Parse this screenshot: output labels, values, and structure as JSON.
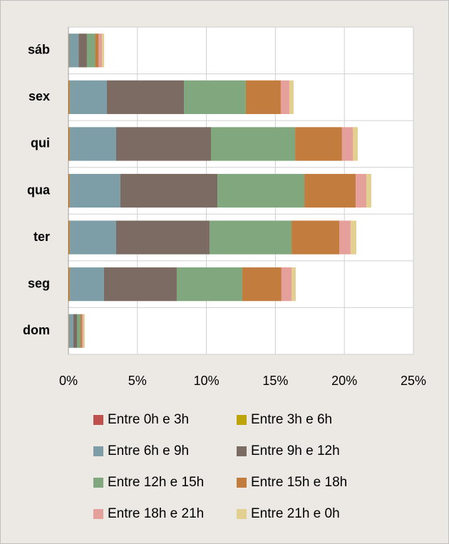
{
  "chart_data": {
    "type": "stacked_bar_horizontal",
    "categories": [
      "sáb",
      "sex",
      "qui",
      "qua",
      "ter",
      "seg",
      "dom"
    ],
    "series": [
      {
        "name": "Entre 0h e 3h",
        "color": "#c0504d",
        "values": [
          0.02,
          0.05,
          0.05,
          0.05,
          0.05,
          0.05,
          0.02
        ]
      },
      {
        "name": "Entre 3h e 6h",
        "color": "#bca40a",
        "values": [
          0.02,
          0.05,
          0.05,
          0.05,
          0.05,
          0.05,
          0.02
        ]
      },
      {
        "name": "Entre 6h e 9h",
        "color": "#7d9ea6",
        "values": [
          0.7,
          2.69,
          3.36,
          3.67,
          3.36,
          2.48,
          0.32
        ]
      },
      {
        "name": "Entre 9h e 12h",
        "color": "#7b6b62",
        "values": [
          0.6,
          5.58,
          6.87,
          7.03,
          6.77,
          5.27,
          0.26
        ]
      },
      {
        "name": "Entre 12h e 15h",
        "color": "#80a77e",
        "values": [
          0.6,
          4.49,
          6.1,
          6.3,
          5.94,
          4.75,
          0.26
        ]
      },
      {
        "name": "Entre 15h e 18h",
        "color": "#c27c3e",
        "values": [
          0.25,
          2.53,
          3.4,
          3.72,
          3.46,
          2.84,
          0.1
        ]
      },
      {
        "name": "Entre 18h e 21h",
        "color": "#e6a09c",
        "values": [
          0.25,
          0.62,
          0.78,
          0.77,
          0.82,
          0.73,
          0.1
        ]
      },
      {
        "name": "Entre 21h e 0h",
        "color": "#e3cf8f",
        "values": [
          0.15,
          0.31,
          0.36,
          0.36,
          0.42,
          0.31,
          0.1
        ]
      }
    ],
    "xlim": [
      0,
      25
    ],
    "xticks": [
      {
        "value": 0,
        "label": "0%"
      },
      {
        "value": 5,
        "label": "5%"
      },
      {
        "value": 10,
        "label": "10%"
      },
      {
        "value": 15,
        "label": "15%"
      },
      {
        "value": 20,
        "label": "20%"
      },
      {
        "value": 25,
        "label": "25%"
      }
    ],
    "grid": true,
    "legend": "bottom"
  }
}
